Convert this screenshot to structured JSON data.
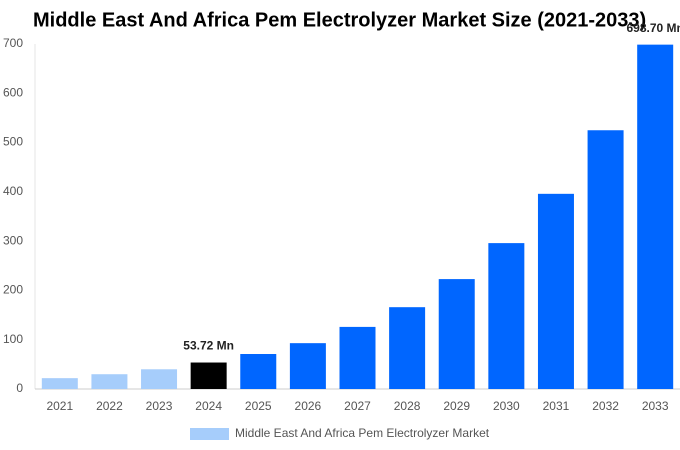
{
  "chart_data": {
    "type": "bar",
    "title": "Middle East And Africa Pem Electrolyzer Market Size (2021-2033)",
    "categories": [
      "2021",
      "2022",
      "2023",
      "2024",
      "2025",
      "2026",
      "2027",
      "2028",
      "2029",
      "2030",
      "2031",
      "2032",
      "2033"
    ],
    "series": [
      {
        "name": "Middle East And Africa Pem Electrolyzer Market",
        "color": "#a6cdfb",
        "colors": [
          "#a6cdfb",
          "#a6cdfb",
          "#a6cdfb",
          "#000000",
          "#0066ff",
          "#0066ff",
          "#0066ff",
          "#0066ff",
          "#0066ff",
          "#0066ff",
          "#0066ff",
          "#0066ff",
          "#0066ff"
        ],
        "values": [
          22,
          30,
          40,
          53.72,
          71,
          93,
          126,
          166,
          223,
          296,
          396,
          525,
          698.7
        ],
        "value_labels": [
          null,
          null,
          null,
          "53.72 Mn",
          null,
          null,
          null,
          null,
          null,
          null,
          null,
          null,
          "698.70 Mn"
        ]
      }
    ],
    "ylim": [
      0,
      700
    ],
    "yticks": [
      0,
      100,
      200,
      300,
      400,
      500,
      600,
      700
    ],
    "grid": false
  }
}
